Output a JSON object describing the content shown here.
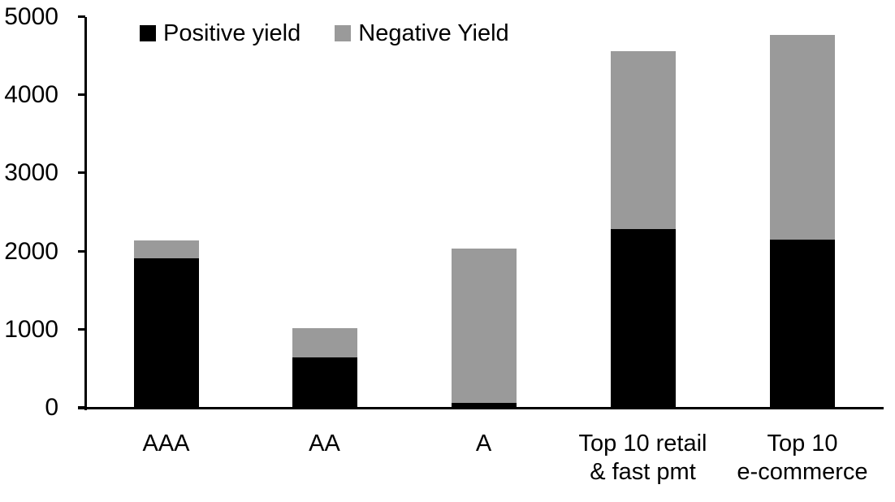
{
  "chart_data": {
    "type": "bar",
    "stacked": true,
    "categories": [
      [
        "AAA"
      ],
      [
        "AA"
      ],
      [
        "A"
      ],
      [
        "Top 10 retail",
        "& fast pmt"
      ],
      [
        "Top 10",
        "e-commerce"
      ]
    ],
    "series": [
      {
        "name": "Positive yield",
        "color": "#000000",
        "values": [
          1900,
          630,
          50,
          2280,
          2140
        ]
      },
      {
        "name": "Negative Yield",
        "color": "#9A9A9A",
        "values": [
          230,
          375,
          1980,
          2275,
          2620
        ]
      }
    ],
    "totals": [
      2130,
      1005,
      2030,
      4555,
      4760
    ],
    "ylim": [
      0,
      5000
    ],
    "yticks": [
      0,
      1000,
      2000,
      3000,
      4000,
      5000
    ],
    "xlabel": "",
    "ylabel": "",
    "grid": false,
    "legend_position": "top-left",
    "background": "#ffffff",
    "axis_color": "#000000"
  }
}
